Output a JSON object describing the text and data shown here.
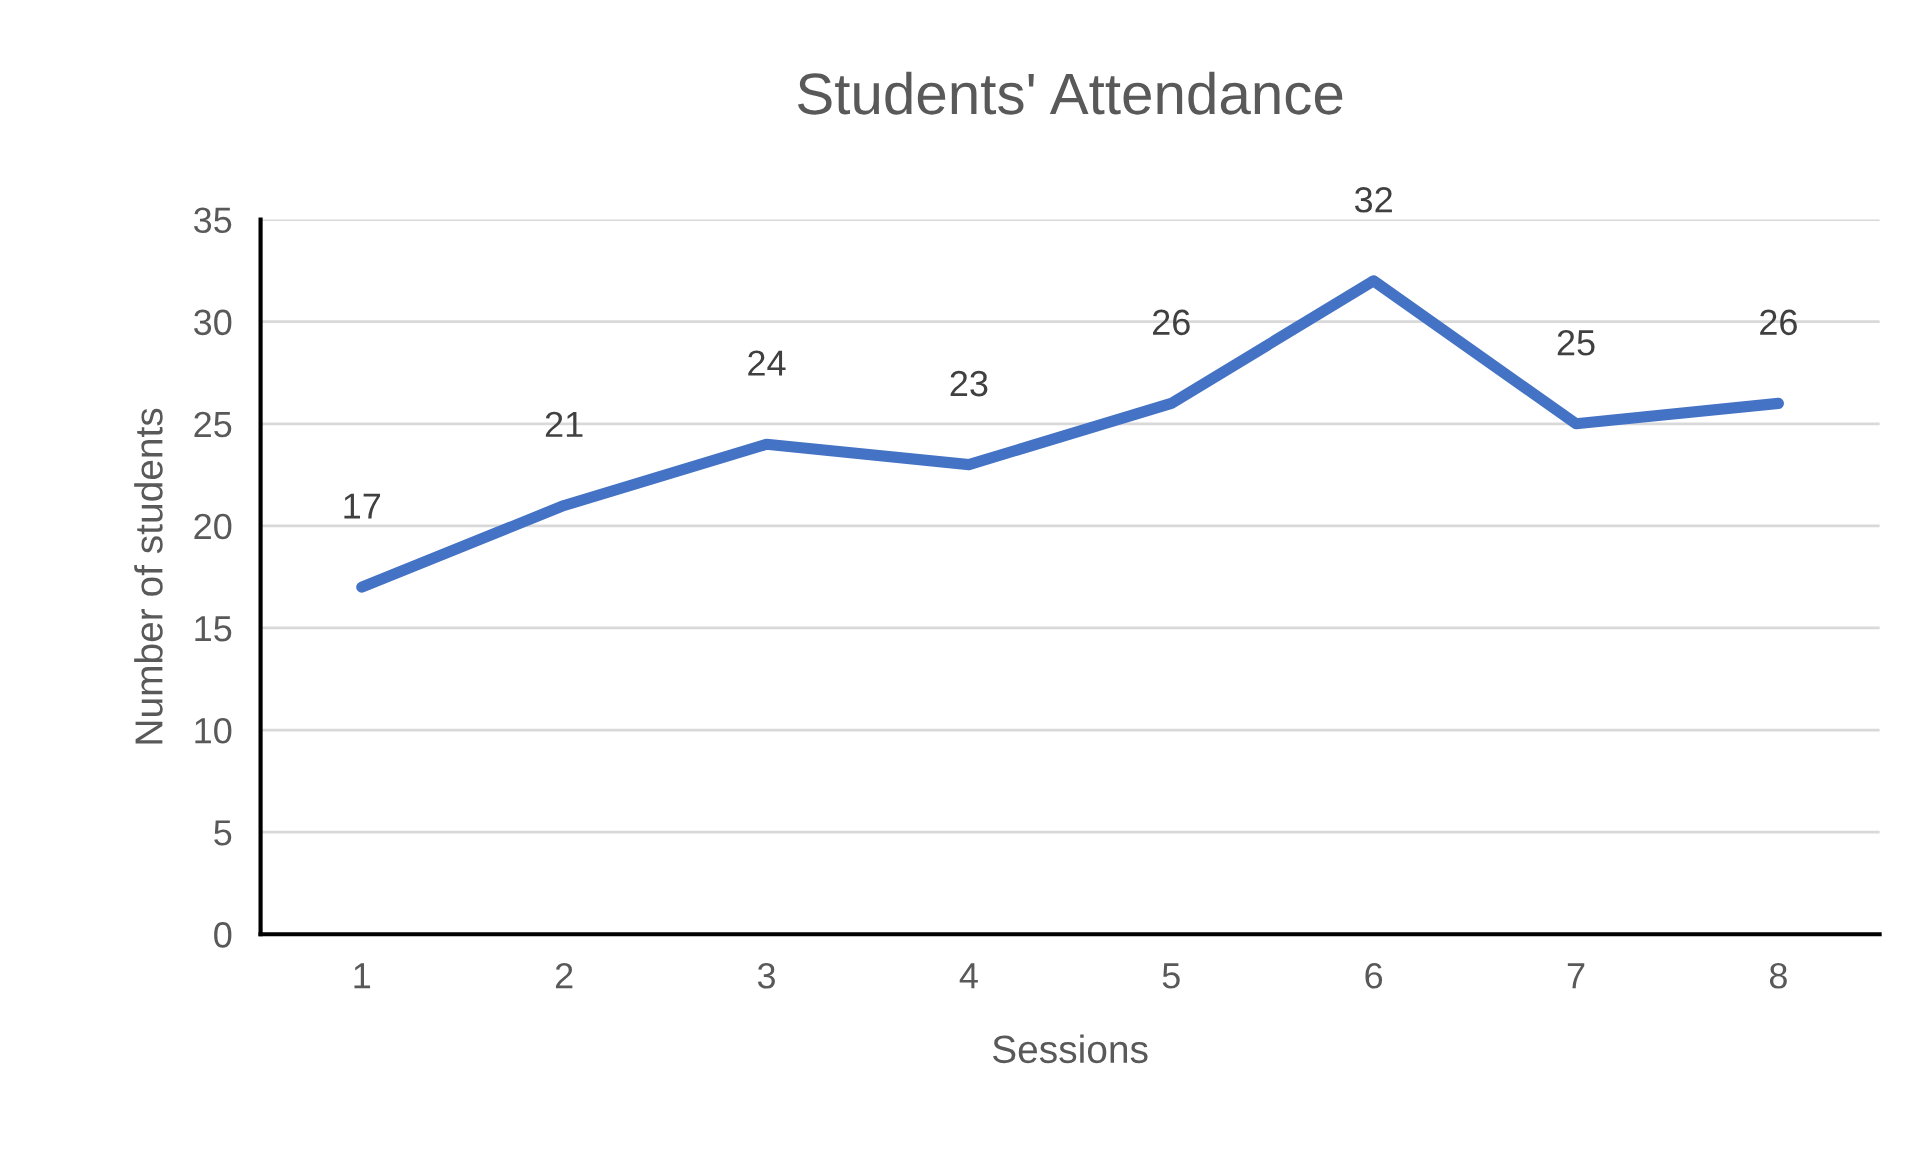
{
  "chart_data": {
    "type": "line",
    "title": "Students' Attendance",
    "xlabel": "Sessions",
    "ylabel": "Number of students",
    "categories": [
      "1",
      "2",
      "3",
      "4",
      "5",
      "6",
      "7",
      "8"
    ],
    "series": [
      {
        "color": "#4472c4",
        "values": [
          17,
          21,
          24,
          23,
          26,
          32,
          25,
          26
        ]
      }
    ],
    "ylim": [
      0,
      35
    ],
    "yticks": [
      0,
      5,
      10,
      15,
      20,
      25,
      30,
      35
    ],
    "grid": "y",
    "data_labels": true,
    "marker": "none",
    "line_style": "solid",
    "legend": false
  }
}
